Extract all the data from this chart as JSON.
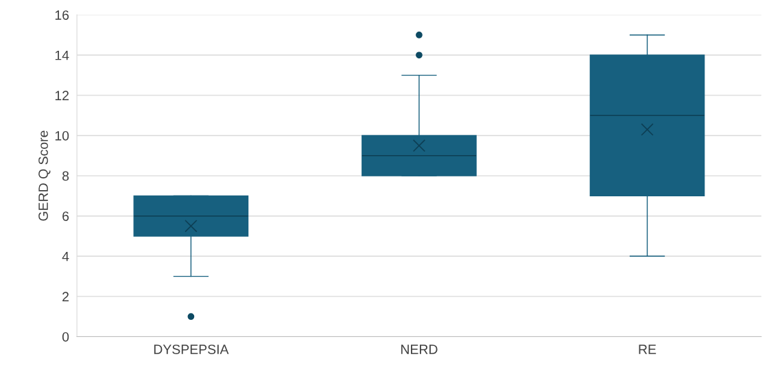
{
  "chart_data": {
    "type": "box",
    "ylabel": "GERD Q Score",
    "categories": [
      "DYSPEPSIA",
      "NERD",
      "RE"
    ],
    "series": [
      {
        "color": "#17607f",
        "boxes": [
          {
            "low": 3,
            "q1": 5,
            "median": 6,
            "q3": 7,
            "high": 7,
            "mean": 5.5,
            "outliers": [
              1
            ]
          },
          {
            "low": 8,
            "q1": 8,
            "median": 9,
            "q3": 10,
            "high": 13,
            "mean": 9.5,
            "outliers": [
              14,
              15
            ]
          },
          {
            "low": 4,
            "q1": 7,
            "median": 11,
            "q3": 14,
            "high": 15,
            "mean": 10.3
          }
        ]
      }
    ],
    "ylim": [
      0,
      16
    ],
    "yticks": [
      0,
      2,
      4,
      6,
      8,
      10,
      12,
      14,
      16
    ],
    "grid": "y",
    "legend": false
  }
}
